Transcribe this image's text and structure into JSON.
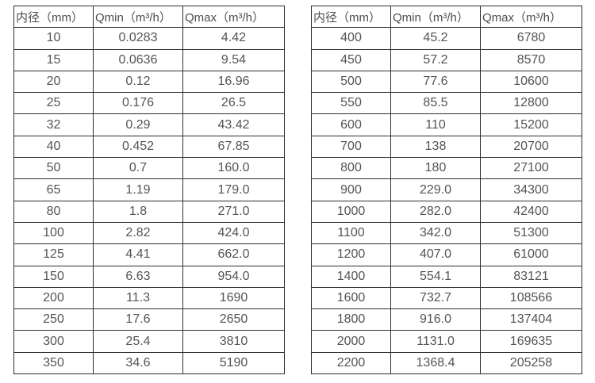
{
  "colors": {
    "background": "#ffffff",
    "border": "#2f2f2f",
    "header_text": "#4d4d4d",
    "cell_text": "#545454"
  },
  "tables": [
    {
      "name": "flow-spec-small-diameters",
      "headers": [
        "内径（mm）",
        "Qmin（m³/h）",
        "Qmax（m³/h）"
      ],
      "rows": [
        [
          "10",
          "0.0283",
          "4.42"
        ],
        [
          "15",
          "0.0636",
          "9.54"
        ],
        [
          "20",
          "0.12",
          "16.96"
        ],
        [
          "25",
          "0.176",
          "26.5"
        ],
        [
          "32",
          "0.29",
          "43.42"
        ],
        [
          "40",
          "0.452",
          "67.85"
        ],
        [
          "50",
          "0.7",
          "160.0"
        ],
        [
          "65",
          "1.19",
          "179.0"
        ],
        [
          "80",
          "1.8",
          "271.0"
        ],
        [
          "100",
          "2.82",
          "424.0"
        ],
        [
          "125",
          "4.41",
          "662.0"
        ],
        [
          "150",
          "6.63",
          "954.0"
        ],
        [
          "200",
          "11.3",
          "1690"
        ],
        [
          "250",
          "17.6",
          "2650"
        ],
        [
          "300",
          "25.4",
          "3810"
        ],
        [
          "350",
          "34.6",
          "5190"
        ]
      ]
    },
    {
      "name": "flow-spec-large-diameters",
      "headers": [
        "内径（mm）",
        "Qmin（m³/h）",
        "Qmax（m³/h）"
      ],
      "rows": [
        [
          "400",
          "45.2",
          "6780"
        ],
        [
          "450",
          "57.2",
          "8570"
        ],
        [
          "500",
          "77.6",
          "10600"
        ],
        [
          "550",
          "85.5",
          "12800"
        ],
        [
          "600",
          "110",
          "15200"
        ],
        [
          "700",
          "138",
          "20700"
        ],
        [
          "800",
          "180",
          "27100"
        ],
        [
          "900",
          "229.0",
          "34300"
        ],
        [
          "1000",
          "282.0",
          "42400"
        ],
        [
          "1100",
          "342.0",
          "51300"
        ],
        [
          "1200",
          "407.0",
          "61000"
        ],
        [
          "1400",
          "554.1",
          "83121"
        ],
        [
          "1600",
          "732.7",
          "108566"
        ],
        [
          "1800",
          "916.0",
          "137404"
        ],
        [
          "2000",
          "1131.0",
          "169635"
        ],
        [
          "2200",
          "1368.4",
          "205258"
        ]
      ]
    }
  ]
}
